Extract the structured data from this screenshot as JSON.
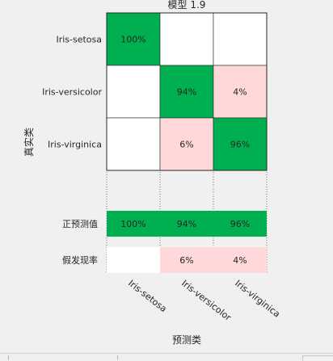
{
  "chart_data": {
    "type": "heatmap",
    "title": "模型 1.9",
    "xlabel": "预测类",
    "ylabel": "真实类",
    "categories": [
      "Iris-setosa",
      "Iris-versicolor",
      "Iris-virginica"
    ],
    "matrix": [
      [
        "100%",
        "",
        ""
      ],
      [
        "",
        "94%",
        "4%"
      ],
      [
        "",
        "6%",
        "96%"
      ]
    ],
    "matrix_values": [
      [
        100,
        0,
        0
      ],
      [
        0,
        94,
        4
      ],
      [
        0,
        6,
        96
      ]
    ],
    "summary_rows": [
      {
        "label": "正预测值",
        "cells": [
          "100%",
          "94%",
          "96%"
        ],
        "kind": "correct"
      },
      {
        "label": "假发现率",
        "cells": [
          "",
          "6%",
          "4%"
        ],
        "kind": "error"
      }
    ],
    "colors": {
      "correct": "#00b050",
      "error": "#ffd9d9",
      "empty": "#ffffff",
      "grid": "#262626"
    }
  }
}
